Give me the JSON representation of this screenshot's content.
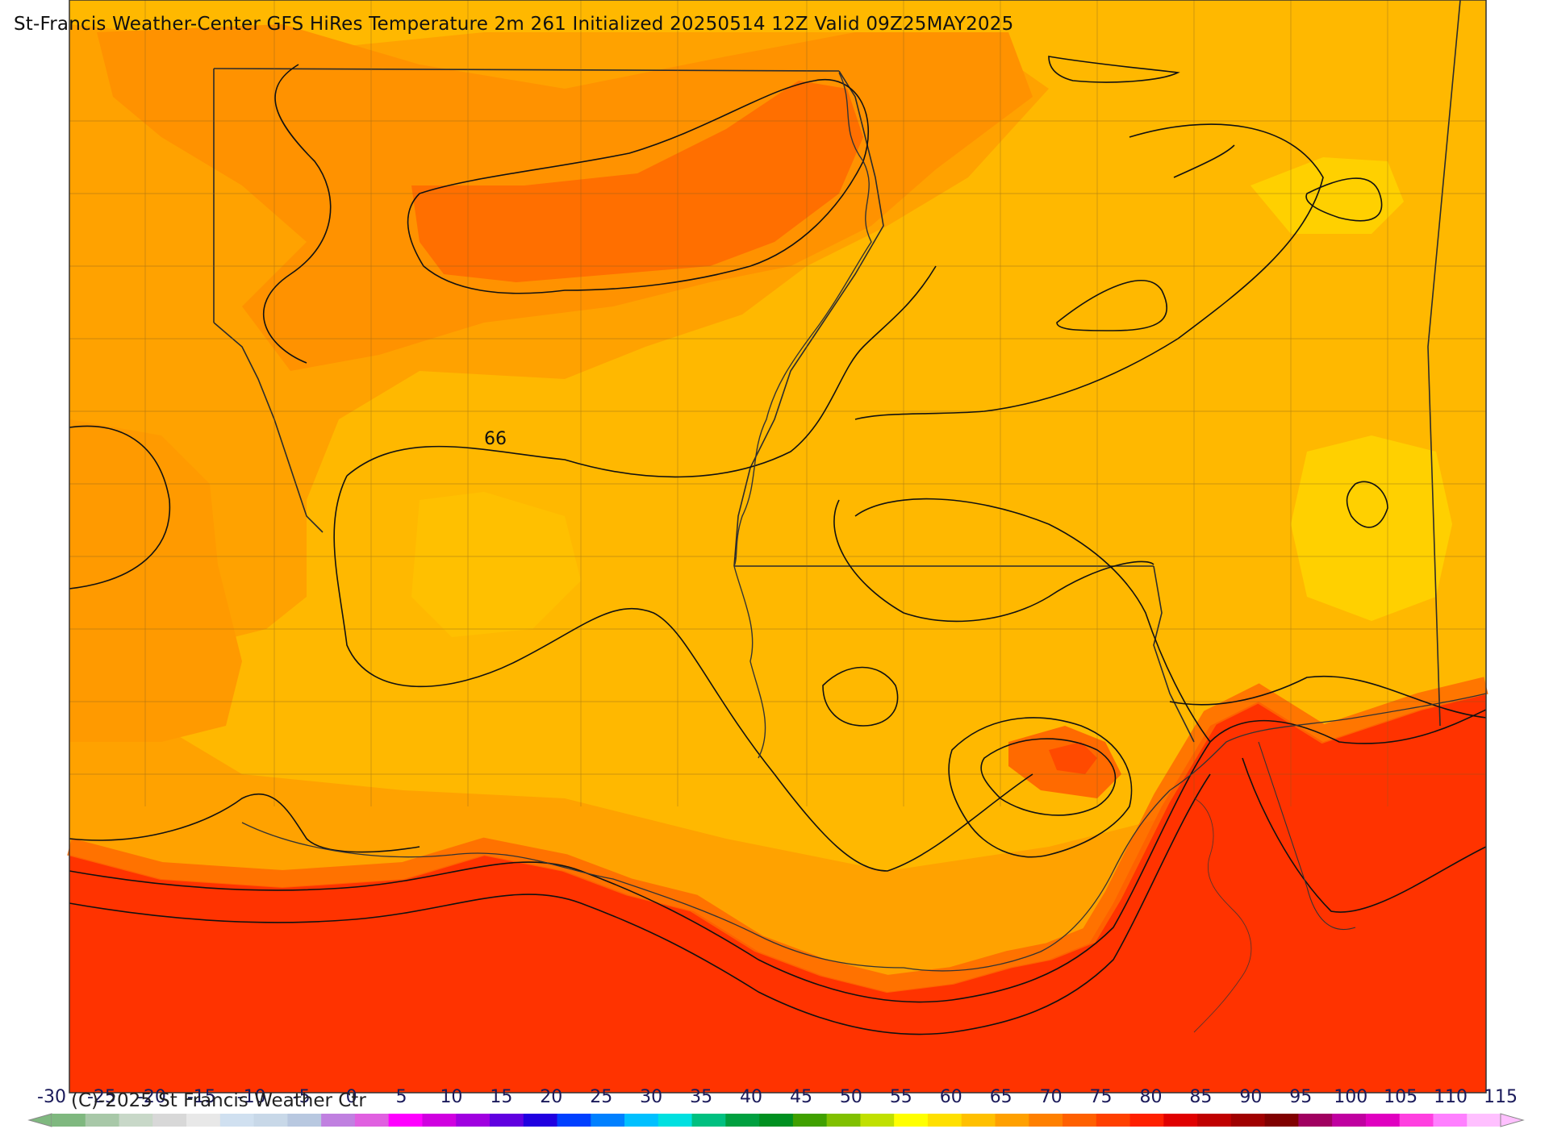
{
  "title": "St-Francis Weather-Center GFS HiRes Temperature 2m  261 Initialized 20250514 12Z Valid 09Z25MAY2025",
  "copyright": "(C)-2025 St Francis Weather Ctr",
  "contour_label": "66",
  "colorbar": {
    "labels": [
      "-30",
      "-25",
      "-20",
      "-15",
      "-10",
      "-5",
      "0",
      "5",
      "10",
      "15",
      "20",
      "25",
      "30",
      "35",
      "40",
      "45",
      "50",
      "55",
      "60",
      "65",
      "70",
      "75",
      "80",
      "85",
      "90",
      "95",
      "100",
      "105",
      "110",
      "115"
    ],
    "colors": [
      "#7fb87f",
      "#a8c8a8",
      "#c8d8c8",
      "#d8d8d8",
      "#e8e8e8",
      "#d0e0f0",
      "#c8d8e8",
      "#b8c8e0",
      "#c080e0",
      "#e060e0",
      "#ff00ff",
      "#d000e0",
      "#a000e0",
      "#6000e0",
      "#2000e0",
      "#0040ff",
      "#0080ff",
      "#00c0ff",
      "#00e0e0",
      "#00c080",
      "#00a040",
      "#009020",
      "#40a000",
      "#80c000",
      "#c0e000",
      "#ffff00",
      "#ffe000",
      "#ffc000",
      "#ffa000",
      "#ff8000",
      "#ff6000",
      "#ff4000",
      "#ff2000",
      "#e00000",
      "#c00000",
      "#a00000",
      "#800000",
      "#a00060",
      "#c000a0",
      "#e000c0",
      "#ff40e0",
      "#ff80ff",
      "#ffc0ff"
    ]
  },
  "palette": {
    "hot_water": "#ff3300",
    "orange_red": "#ff6a00",
    "dark_orange": "#ff8c00",
    "orange": "#ffa200",
    "amber": "#ffb800",
    "yellow": "#ffd000"
  }
}
